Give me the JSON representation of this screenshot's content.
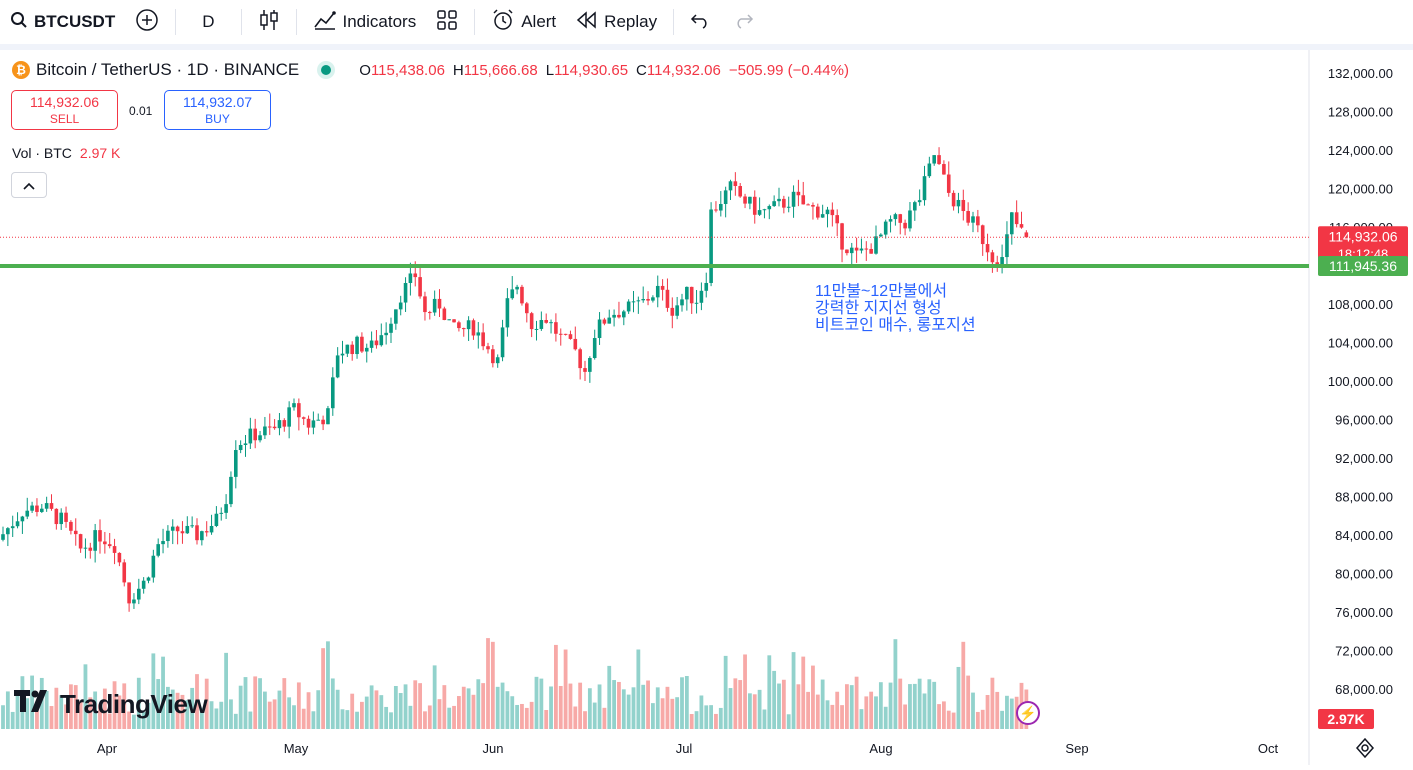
{
  "toolbar": {
    "symbol": "BTCUSDT",
    "interval": "D",
    "indicators": "Indicators",
    "alert": "Alert",
    "replay": "Replay"
  },
  "legend": {
    "title": "Bitcoin / TetherUS · 1D · BINANCE",
    "o_label": "O",
    "o_value": "115,438.06",
    "h_label": "H",
    "h_value": "115,666.68",
    "l_label": "L",
    "l_value": "114,930.65",
    "c_label": "C",
    "c_value": "114,932.06",
    "change": "−505.99 (−0.44%)"
  },
  "trade": {
    "sell_price": "114,932.06",
    "sell_label": "SELL",
    "spread": "0.01",
    "buy_price": "114,932.07",
    "buy_label": "BUY"
  },
  "volume_legend": {
    "label": "Vol · BTC",
    "value": "2.97 K"
  },
  "note": [
    "11만불~12만불에서",
    "강력한 지지선 형성",
    "비트코인 매수, 롱포지션"
  ],
  "price_label": {
    "price": "114,932.06",
    "countdown": "18:12:48"
  },
  "support_label": "111,945.36",
  "volume_label": "2.97K",
  "brand": "TradingView",
  "colors": {
    "up": "#089981",
    "down": "#f23645",
    "up_vol": "#92d2cc",
    "down_vol": "#f7a9a7",
    "support": "#4caf50",
    "accent": "#2962ff"
  },
  "chart_data": {
    "type": "candlestick",
    "title": "Bitcoin / TetherUS · 1D · BINANCE",
    "y_ticks": [
      68000,
      72000,
      76000,
      80000,
      84000,
      88000,
      92000,
      96000,
      100000,
      104000,
      108000,
      112000,
      116000,
      120000,
      124000,
      128000,
      132000
    ],
    "ylim": [
      64000,
      134000
    ],
    "x_ticks": [
      "Apr",
      "May",
      "Jun",
      "Jul",
      "Aug",
      "Sep",
      "Oct"
    ],
    "support_level": 111945.36,
    "last_price": 114932.06,
    "days": 148,
    "waypoints": [
      [
        0,
        83500
      ],
      [
        5,
        86500
      ],
      [
        9,
        87000
      ],
      [
        13,
        85500
      ],
      [
        17,
        82500
      ],
      [
        21,
        84000
      ],
      [
        24,
        83000
      ],
      [
        27,
        77500
      ],
      [
        30,
        79000
      ],
      [
        33,
        83000
      ],
      [
        37,
        84500
      ],
      [
        41,
        84000
      ],
      [
        45,
        85500
      ],
      [
        47,
        88000
      ],
      [
        49,
        93500
      ],
      [
        53,
        94500
      ],
      [
        57,
        95000
      ],
      [
        61,
        97000
      ],
      [
        64,
        95500
      ],
      [
        68,
        96500
      ],
      [
        70,
        103000
      ],
      [
        74,
        103800
      ],
      [
        77,
        103500
      ],
      [
        80,
        105500
      ],
      [
        83,
        109000
      ],
      [
        86,
        111000
      ],
      [
        88,
        107000
      ],
      [
        91,
        108000
      ],
      [
        94,
        105200
      ],
      [
        98,
        105600
      ],
      [
        101,
        103500
      ],
      [
        103,
        102000
      ],
      [
        105,
        108000
      ],
      [
        107,
        110000
      ],
      [
        110,
        106000
      ],
      [
        113,
        106500
      ],
      [
        116,
        104500
      ],
      [
        119,
        103000
      ],
      [
        121,
        101000
      ],
      [
        123,
        105000
      ],
      [
        126,
        107000
      ],
      [
        130,
        107500
      ],
      [
        133,
        108200
      ],
      [
        136,
        109500
      ],
      [
        139,
        107500
      ],
      [
        142,
        109000
      ],
      [
        144,
        108500
      ],
      [
        146,
        111000
      ],
      [
        147,
        117500
      ],
      [
        149,
        118800
      ],
      [
        151,
        120000
      ],
      [
        154,
        118700
      ],
      [
        157,
        117500
      ],
      [
        160,
        118000
      ],
      [
        164,
        119000
      ],
      [
        167,
        118000
      ],
      [
        171,
        117500
      ],
      [
        174,
        114500
      ],
      [
        177,
        113000
      ],
      [
        181,
        114300
      ],
      [
        184,
        116500
      ],
      [
        187,
        116500
      ],
      [
        190,
        119000
      ],
      [
        193,
        123500
      ],
      [
        196,
        119500
      ],
      [
        199,
        117500
      ],
      [
        202,
        115700
      ],
      [
        205,
        113000
      ],
      [
        207,
        112500
      ],
      [
        209,
        117000
      ],
      [
        211,
        115438
      ]
    ],
    "last_candle": {
      "o": 115438.06,
      "h": 115666.68,
      "l": 114930.65,
      "c": 114932.06
    }
  }
}
